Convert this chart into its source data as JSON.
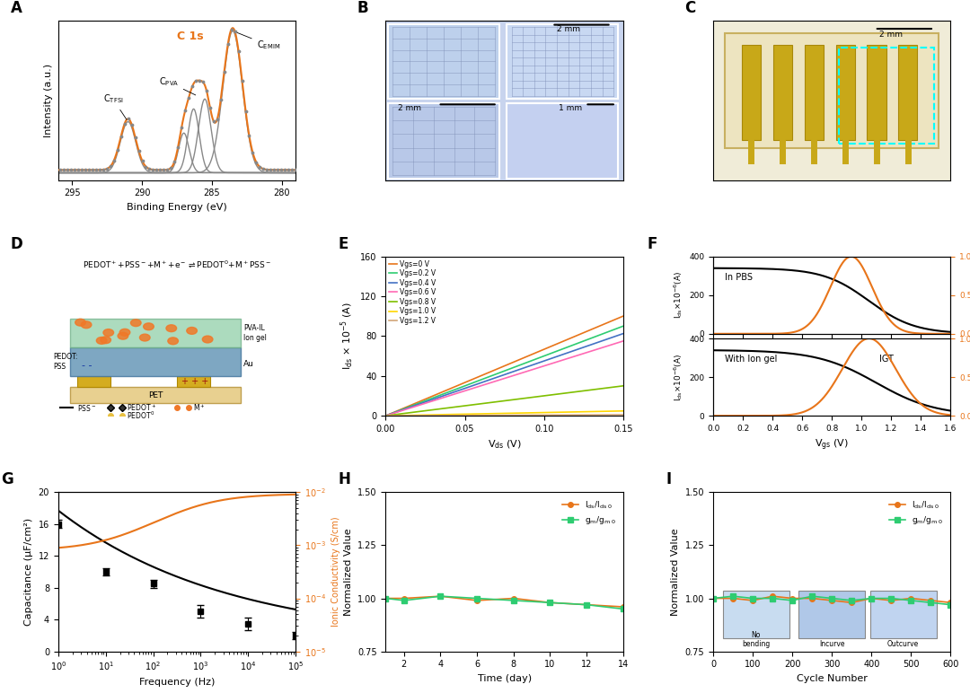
{
  "panel_A": {
    "title": "C 1s",
    "xlabel": "Binding Energy (eV)",
    "ylabel": "Intensity (a.u.)",
    "xlim": [
      296,
      279
    ],
    "orange_color": "#E8751A",
    "gray_color": "#888888"
  },
  "panel_E": {
    "xlabel": "V_ds (V)",
    "ylabel": "I_ds x 10^-5 (A)",
    "xlim": [
      0,
      0.15
    ],
    "ylim": [
      0,
      160
    ],
    "yticks": [
      0,
      40,
      80,
      120,
      160
    ],
    "xticks": [
      0,
      0.05,
      0.1,
      0.15
    ],
    "legend_labels": [
      "Vgs=0 V",
      "Vgs=0.2 V",
      "Vgs=0.4 V",
      "Vgs=0.6 V",
      "Vgs=0.8 V",
      "Vgs=1.0 V",
      "Vgs=1.2 V"
    ],
    "line_colors": [
      "#E8751A",
      "#2ECC71",
      "#4472C4",
      "#FF69B4",
      "#7FBF00",
      "#FFD700",
      "#D2A679"
    ],
    "slopes": [
      667,
      600,
      550,
      500,
      200,
      32,
      7
    ]
  },
  "panel_F": {
    "xlabel": "V_gs (V)",
    "xlim": [
      0.0,
      1.6
    ],
    "ylim_ids": [
      0,
      400
    ],
    "ylim_gm": [
      0,
      1.0
    ],
    "yticks_ids": [
      0,
      200,
      400
    ],
    "yticks_gm": [
      0,
      0.5,
      1.0
    ],
    "orange_color": "#E8751A",
    "black_color": "#000000"
  },
  "panel_G": {
    "xlabel": "Frequency (Hz)",
    "ylabel_left": "Capacitance (μF/cm²)",
    "ylabel_right": "Ionic Conductivity (S/cm)",
    "freq_data": [
      1,
      10,
      100,
      1000,
      10000,
      100000
    ],
    "cap_data": [
      16.0,
      10.0,
      8.5,
      5.0,
      3.5,
      2.0
    ],
    "cap_err": [
      0.5,
      0.5,
      0.5,
      0.8,
      0.8,
      0.5
    ],
    "ylim_cap": [
      0,
      20
    ],
    "yticks_cap": [
      0,
      4,
      8,
      12,
      16,
      20
    ],
    "ylim_cond": [
      1e-05,
      0.01
    ],
    "orange_color": "#E8751A"
  },
  "panel_H": {
    "xlabel": "Time (day)",
    "ylabel": "Normalized Value",
    "xlim": [
      1,
      14
    ],
    "ylim": [
      0.75,
      1.5
    ],
    "yticks": [
      0.75,
      1.0,
      1.25,
      1.5
    ],
    "xticks": [
      2,
      4,
      6,
      8,
      10,
      12,
      14
    ],
    "ids_color": "#E8751A",
    "gm_color": "#2ECC71"
  },
  "panel_I": {
    "xlabel": "Cycle Number",
    "ylabel": "Normalized Value",
    "xlim": [
      0,
      600
    ],
    "ylim": [
      0.75,
      1.5
    ],
    "yticks": [
      0.75,
      1.0,
      1.25,
      1.5
    ],
    "xticks": [
      0,
      100,
      200,
      300,
      400,
      500,
      600
    ],
    "ids_color": "#E8751A",
    "gm_color": "#2ECC71",
    "bend_labels": [
      "No\nbending",
      "Incurve",
      "Outcurve"
    ]
  },
  "colors": {
    "orange": "#E8751A",
    "green": "#2ECC71",
    "blue": "#4472C4",
    "pink": "#FF69B4",
    "light_green": "#7FBF00",
    "yellow": "#FFD700",
    "tan": "#D2A679",
    "black": "#000000",
    "gray": "#888888",
    "white": "#FFFFFF"
  }
}
